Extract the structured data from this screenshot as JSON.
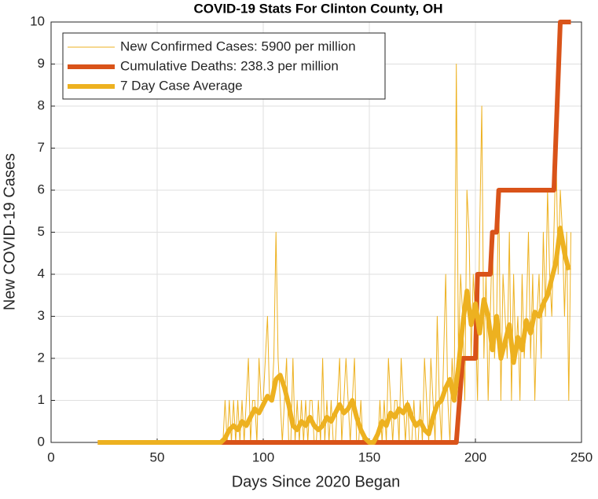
{
  "chart_data": {
    "type": "line",
    "title": "COVID-19 Stats For Clinton County, OH",
    "xlabel": "Days Since 2020 Began",
    "ylabel": "New COVID-19 Cases",
    "xlim": [
      0,
      250
    ],
    "xticks": [
      0,
      50,
      100,
      150,
      200,
      250
    ],
    "ylim": [
      0,
      10
    ],
    "yticks": [
      0,
      1,
      2,
      3,
      4,
      5,
      6,
      7,
      8,
      9,
      10
    ],
    "grid": true,
    "legend": "upper-left",
    "series": [
      {
        "name": "New Confirmed Cases: 5900 per million",
        "color": "#EDB120",
        "width": 1,
        "x": [
          22,
          80,
          81,
          82,
          83,
          84,
          85,
          86,
          87,
          88,
          89,
          90,
          91,
          92,
          93,
          94,
          95,
          96,
          97,
          98,
          99,
          100,
          101,
          102,
          103,
          104,
          105,
          106,
          107,
          108,
          109,
          110,
          111,
          112,
          113,
          114,
          115,
          116,
          117,
          118,
          119,
          120,
          121,
          122,
          123,
          124,
          125,
          126,
          127,
          128,
          129,
          130,
          131,
          132,
          133,
          134,
          135,
          136,
          137,
          138,
          139,
          140,
          141,
          142,
          143,
          144,
          145,
          146,
          147,
          148,
          149,
          150,
          151,
          152,
          153,
          154,
          155,
          156,
          157,
          158,
          159,
          160,
          161,
          162,
          163,
          164,
          165,
          166,
          167,
          168,
          169,
          170,
          171,
          172,
          173,
          174,
          175,
          176,
          177,
          178,
          179,
          180,
          181,
          182,
          183,
          184,
          185,
          186,
          187,
          188,
          189,
          190,
          191,
          192,
          193,
          194,
          195,
          196,
          197,
          198,
          199,
          200,
          201,
          202,
          203,
          204,
          205,
          206,
          207,
          208,
          209,
          210,
          211,
          212,
          213,
          214,
          215,
          216,
          217,
          218,
          219,
          220,
          221,
          222,
          223,
          224,
          225,
          226,
          227,
          228,
          229,
          230,
          231,
          232,
          233,
          234,
          235,
          236,
          237,
          238,
          239,
          240,
          241,
          242,
          243,
          244,
          245
        ],
        "values": [
          0,
          0,
          0,
          1,
          0,
          1,
          0,
          1,
          0,
          1,
          0,
          1,
          0,
          1,
          2,
          0,
          1,
          1,
          0,
          2,
          1,
          1,
          2,
          3,
          1,
          1,
          2,
          5,
          2,
          1,
          0,
          1,
          2,
          0,
          0,
          2,
          0,
          1,
          0,
          1,
          0,
          1,
          0,
          1,
          1,
          0,
          0,
          1,
          0,
          2,
          0,
          1,
          0,
          1,
          0,
          0,
          1,
          2,
          0,
          1,
          2,
          1,
          0,
          1,
          2,
          0,
          0,
          1,
          0,
          0,
          0,
          0,
          0,
          0,
          0,
          0,
          1,
          0,
          1,
          0,
          2,
          1,
          0,
          1,
          1,
          0,
          2,
          1,
          0,
          1,
          0,
          0,
          1,
          0,
          0,
          1,
          0,
          2,
          1,
          0,
          2,
          1,
          0,
          3,
          1,
          0,
          2,
          4,
          1,
          0,
          2,
          1,
          9,
          2,
          4,
          3,
          1,
          6,
          5,
          2,
          4,
          3,
          1,
          5,
          8,
          2,
          4,
          1,
          3,
          5,
          2,
          3,
          6,
          1,
          4,
          3,
          2,
          5,
          1,
          4,
          2,
          3,
          1,
          4,
          2,
          3,
          5,
          2,
          4,
          1,
          3,
          4,
          2,
          5,
          3,
          6,
          4,
          3,
          5,
          7,
          4,
          6,
          5,
          3,
          5,
          1,
          5
        ]
      },
      {
        "name": "Cumulative Deaths: 238.3 per million",
        "color": "#D95319",
        "width": 6,
        "x": [
          22,
          191,
          194,
          200,
          201,
          207,
          208,
          210,
          211,
          237,
          240,
          245
        ],
        "values": [
          0,
          0,
          2,
          2,
          4,
          4,
          5,
          5,
          6,
          6,
          10,
          10
        ]
      },
      {
        "name": "7 Day Case Average",
        "color": "#EDB120",
        "width": 6,
        "x": [
          22,
          80,
          82,
          84,
          86,
          88,
          90,
          92,
          94,
          96,
          98,
          100,
          102,
          104,
          106,
          108,
          110,
          112,
          114,
          116,
          118,
          120,
          122,
          124,
          126,
          128,
          130,
          132,
          134,
          136,
          138,
          140,
          142,
          144,
          146,
          148,
          150,
          152,
          154,
          156,
          158,
          160,
          162,
          164,
          166,
          168,
          170,
          172,
          174,
          176,
          178,
          180,
          182,
          184,
          186,
          188,
          190,
          192,
          194,
          196,
          198,
          200,
          202,
          204,
          206,
          208,
          210,
          212,
          214,
          216,
          218,
          220,
          222,
          224,
          226,
          228,
          230,
          232,
          234,
          236,
          238,
          240,
          242,
          244
        ],
        "values": [
          0,
          0,
          0.1,
          0.3,
          0.4,
          0.3,
          0.5,
          0.4,
          0.6,
          0.8,
          0.7,
          0.9,
          1.1,
          1.0,
          1.5,
          1.6,
          1.3,
          0.9,
          0.4,
          0.3,
          0.5,
          0.4,
          0.6,
          0.4,
          0.3,
          0.4,
          0.6,
          0.5,
          0.7,
          0.9,
          0.7,
          0.8,
          1.0,
          0.6,
          0.3,
          0.1,
          0,
          0,
          0.2,
          0.5,
          0.4,
          0.7,
          0.6,
          0.8,
          0.7,
          0.9,
          0.6,
          0.4,
          0.5,
          0.3,
          0.2,
          0.6,
          0.9,
          1.0,
          1.3,
          1.5,
          1.0,
          1.8,
          2.8,
          3.6,
          2.8,
          3.3,
          2.6,
          3.4,
          3.0,
          2.2,
          3.0,
          2.0,
          2.4,
          2.8,
          1.9,
          2.5,
          2.2,
          2.9,
          2.6,
          3.1,
          3.0,
          3.3,
          3.5,
          3.9,
          4.3,
          5.1,
          4.5,
          4.1
        ]
      }
    ]
  }
}
